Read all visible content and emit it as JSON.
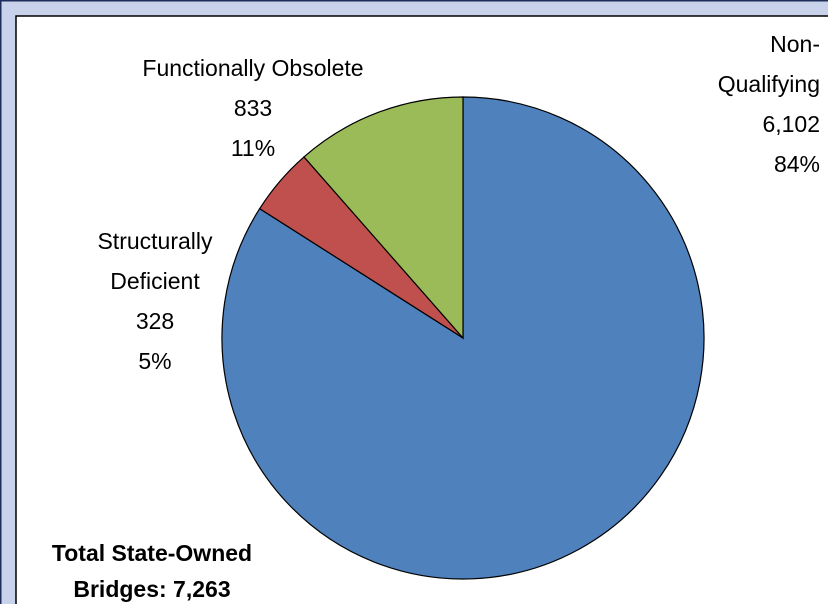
{
  "chart_data": {
    "type": "pie",
    "categories": [
      [
        "Non-",
        "Qualifying"
      ],
      [
        "Structurally",
        "Deficient"
      ],
      [
        "Functionally Obsolete"
      ]
    ],
    "values": [
      6102,
      328,
      833
    ],
    "value_labels": [
      "6,102",
      "328",
      "833"
    ],
    "percent_labels": [
      "84%",
      "5%",
      "11%"
    ],
    "colors": [
      "#4f81bd",
      "#c0504d",
      "#9bbb59"
    ],
    "annotation": [
      "Total State-Owned",
      "Bridges: 7,263"
    ]
  }
}
